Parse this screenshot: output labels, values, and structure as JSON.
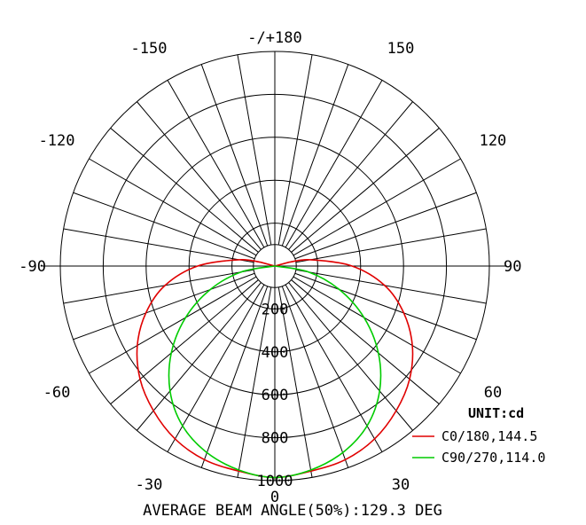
{
  "chart_data": {
    "type": "polar-line",
    "subtitle": "",
    "unit_label": "UNIT:cd",
    "caption": "AVERAGE BEAM ANGLE(50%):129.3 DEG",
    "radial_ticks": [
      200,
      400,
      600,
      800,
      1000
    ],
    "radial_inner_circle": 100,
    "radial_max": 1000,
    "angle_labels": [
      {
        "angle": 180,
        "text": "-/+180"
      },
      {
        "angle": -150,
        "text": "-150"
      },
      {
        "angle": 150,
        "text": "150"
      },
      {
        "angle": -120,
        "text": "-120"
      },
      {
        "angle": 120,
        "text": "120"
      },
      {
        "angle": -90,
        "text": "-90"
      },
      {
        "angle": 90,
        "text": "90"
      },
      {
        "angle": -60,
        "text": "-60"
      },
      {
        "angle": 60,
        "text": "60"
      },
      {
        "angle": -30,
        "text": "-30"
      },
      {
        "angle": 30,
        "text": "30"
      },
      {
        "angle": 0,
        "text": "0"
      }
    ],
    "series": [
      {
        "name": "C0/180,144.5",
        "color": "#e00000",
        "angles": [
          0,
          10,
          20,
          30,
          40,
          50,
          60,
          70,
          80,
          90,
          100,
          105
        ],
        "values": [
          985,
          970,
          960,
          930,
          880,
          820,
          740,
          640,
          520,
          360,
          170,
          70
        ]
      },
      {
        "name": "C90/270,114.0",
        "color": "#00cc00",
        "angles": [
          0,
          10,
          20,
          30,
          40,
          50,
          60,
          70,
          80,
          90
        ],
        "values": [
          985,
          965,
          925,
          860,
          760,
          630,
          480,
          320,
          160,
          0
        ]
      }
    ]
  }
}
